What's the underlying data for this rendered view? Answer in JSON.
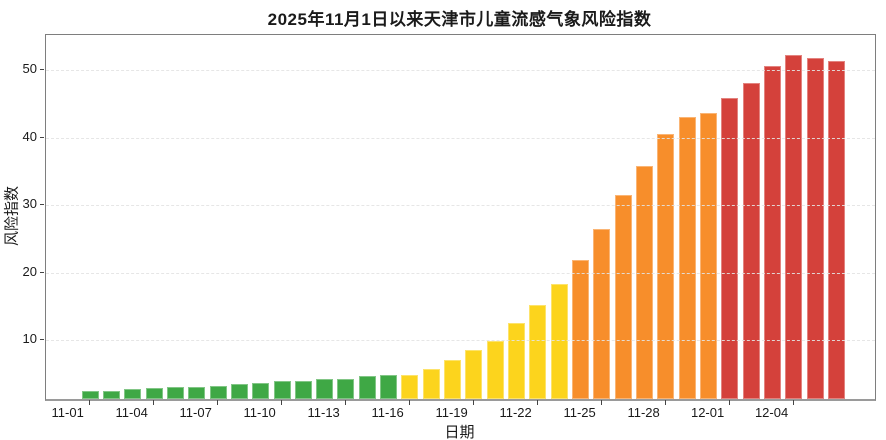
{
  "page": {
    "background": "#ffffff"
  },
  "chart_data": {
    "type": "bar",
    "title": "2025年11月1日以来天津市儿童流感气象风险指数",
    "xlabel": "日期",
    "ylabel": "风险指数",
    "ylim": [
      1.3,
      55.2
    ],
    "yticks": [
      10,
      20,
      30,
      40,
      50
    ],
    "grid": {
      "horizontal": true,
      "style": "dashed"
    },
    "legend_position": "none",
    "x_tick_labels": [
      "11-01",
      "11-04",
      "11-07",
      "11-10",
      "11-13",
      "11-16",
      "11-19",
      "11-22",
      "11-25",
      "11-28",
      "12-01",
      "12-04"
    ],
    "x_tick_label_interval": 3,
    "categories": [
      "11-01",
      "11-02",
      "11-03",
      "11-04",
      "11-05",
      "11-06",
      "11-07",
      "11-08",
      "11-09",
      "11-10",
      "11-11",
      "11-12",
      "11-13",
      "11-14",
      "11-15",
      "11-16",
      "11-17",
      "11-18",
      "11-19",
      "11-20",
      "11-21",
      "11-22",
      "11-23",
      "11-24",
      "11-25",
      "11-26",
      "11-27",
      "11-28",
      "11-29",
      "11-30",
      "12-01",
      "12-02",
      "12-03",
      "12-04",
      "12-05",
      "12-06",
      "12-07"
    ],
    "series": [
      {
        "name": "风险指数",
        "values": [
          null,
          2.5,
          2.5,
          2.8,
          2.9,
          3.1,
          3.1,
          3.3,
          3.5,
          3.7,
          3.9,
          4.0,
          4.2,
          4.3,
          4.7,
          4.9,
          4.9,
          5.7,
          7.1,
          8.5,
          9.9,
          12.5,
          15.2,
          18.4,
          21.9,
          26.5,
          31.5,
          35.8,
          40.6,
          43.1,
          43.7,
          45.8,
          48.1,
          50.6,
          52.2,
          51.8,
          51.3
        ]
      }
    ],
    "levels": [
      "green",
      "green",
      "green",
      "green",
      "green",
      "green",
      "green",
      "green",
      "green",
      "green",
      "green",
      "green",
      "green",
      "green",
      "green",
      "green",
      "yellow",
      "yellow",
      "yellow",
      "yellow",
      "yellow",
      "yellow",
      "yellow",
      "yellow",
      "orange",
      "orange",
      "orange",
      "orange",
      "orange",
      "orange",
      "orange",
      "red",
      "red",
      "red",
      "red",
      "red",
      "red"
    ],
    "palette": {
      "green": "#3FA845",
      "yellow": "#FCD41D",
      "orange": "#F78E2B",
      "red": "#D4413B"
    }
  }
}
